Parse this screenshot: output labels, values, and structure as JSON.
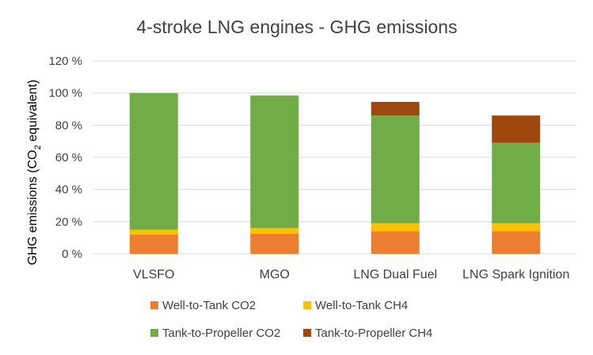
{
  "chart_data": {
    "type": "bar",
    "stacked": true,
    "title": "4-stroke LNG engines - GHG emissions",
    "ylabel": {
      "prefix": "GHG emissions (CO",
      "subscript": "2",
      "suffix": " equivalent)"
    },
    "xlabel": "",
    "ylim": [
      0,
      120
    ],
    "yticks": [
      0,
      20,
      40,
      60,
      80,
      100,
      120
    ],
    "ytick_labels": [
      "0 %",
      "20 %",
      "40 %",
      "60 %",
      "80 %",
      "100 %",
      "120 %"
    ],
    "grid": true,
    "legend_position": "bottom",
    "categories": [
      "VLSFO",
      "MGO",
      "LNG Dual Fuel",
      "LNG Spark Ignition"
    ],
    "series": [
      {
        "name": "Well-to-Tank CO2",
        "color": "#ed7d31",
        "values": [
          12,
          12.5,
          14,
          14
        ]
      },
      {
        "name": "Well-to-Tank CH4",
        "color": "#ffc000",
        "values": [
          3,
          3.5,
          5,
          5
        ]
      },
      {
        "name": "Tank-to-Propeller CO2",
        "color": "#70ad47",
        "values": [
          85,
          82.5,
          67,
          50
        ]
      },
      {
        "name": "Tank-to-Propeller CH4",
        "color": "#9e480e",
        "values": [
          0,
          0,
          8.5,
          17
        ]
      }
    ]
  }
}
